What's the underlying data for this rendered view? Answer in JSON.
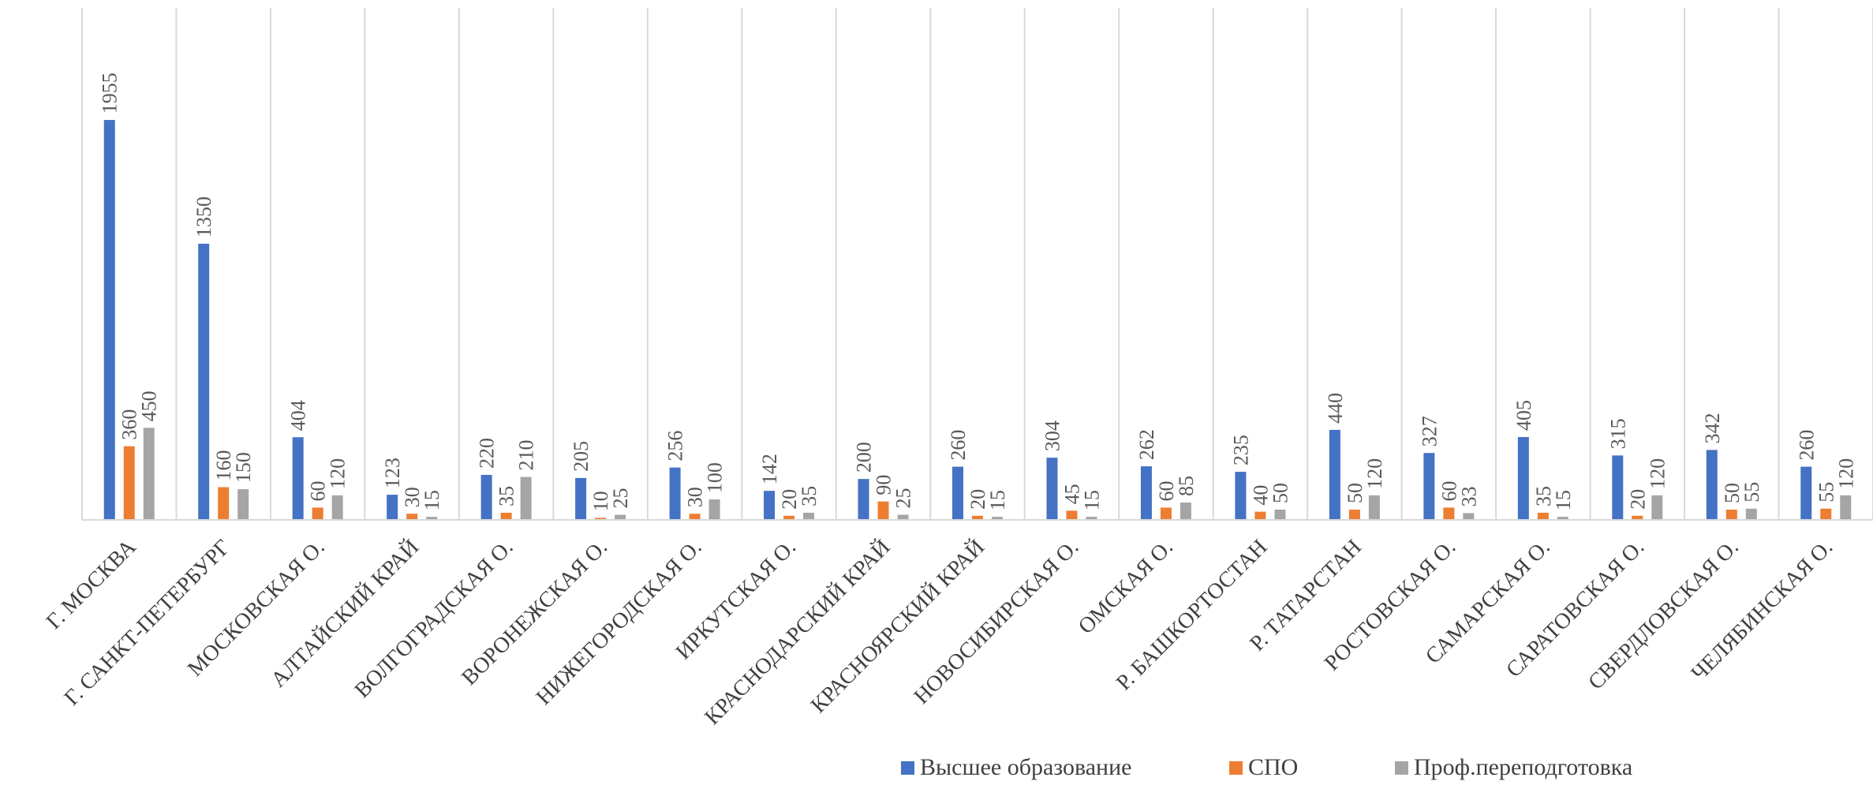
{
  "chart_data": {
    "type": "bar",
    "categories": [
      "Г. МОСКВА",
      "Г. САНКТ-ПЕТЕРБУРГ",
      "МОСКОВСКАЯ О.",
      "АЛТАЙСКИЙ КРАЙ",
      "ВОЛГОГРАДСКАЯ О.",
      "ВОРОНЕЖСКАЯ О.",
      "НИЖЕГОРОДСКАЯ О.",
      "ИРКУТСКАЯ О.",
      "КРАСНОДАРСКИЙ КРАЙ",
      "КРАСНОЯРСКИЙ КРАЙ",
      "НОВОСИБИРСКАЯ О.",
      "ОМСКАЯ О.",
      "Р. БАШКОРТОСТАН",
      "Р. ТАТАРСТАН",
      "РОСТОВСКАЯ О.",
      "САМАРСКАЯ О.",
      "САРАТОВСКАЯ О.",
      "СВЕРДЛОВСКАЯ О.",
      "ЧЕЛЯБИНСКАЯ О."
    ],
    "series": [
      {
        "name": "Высшее образование",
        "color": "#4472c4",
        "values": [
          1955,
          1350,
          404,
          123,
          220,
          205,
          256,
          142,
          200,
          260,
          304,
          262,
          235,
          440,
          327,
          405,
          315,
          342,
          260
        ]
      },
      {
        "name": "СПО",
        "color": "#ed7d31",
        "values": [
          360,
          160,
          60,
          30,
          35,
          10,
          30,
          20,
          90,
          20,
          45,
          60,
          40,
          50,
          60,
          35,
          20,
          50,
          55
        ]
      },
      {
        "name": "Проф.переподготовка",
        "color": "#a5a5a5",
        "values": [
          450,
          150,
          120,
          15,
          210,
          25,
          100,
          35,
          25,
          15,
          15,
          85,
          50,
          120,
          33,
          15,
          120,
          55,
          120
        ]
      }
    ],
    "ylim": [
      0,
      2500
    ],
    "grid": "vertical category separators",
    "legend_position": "bottom",
    "data_labels": "rotated -90 degrees above bars"
  }
}
